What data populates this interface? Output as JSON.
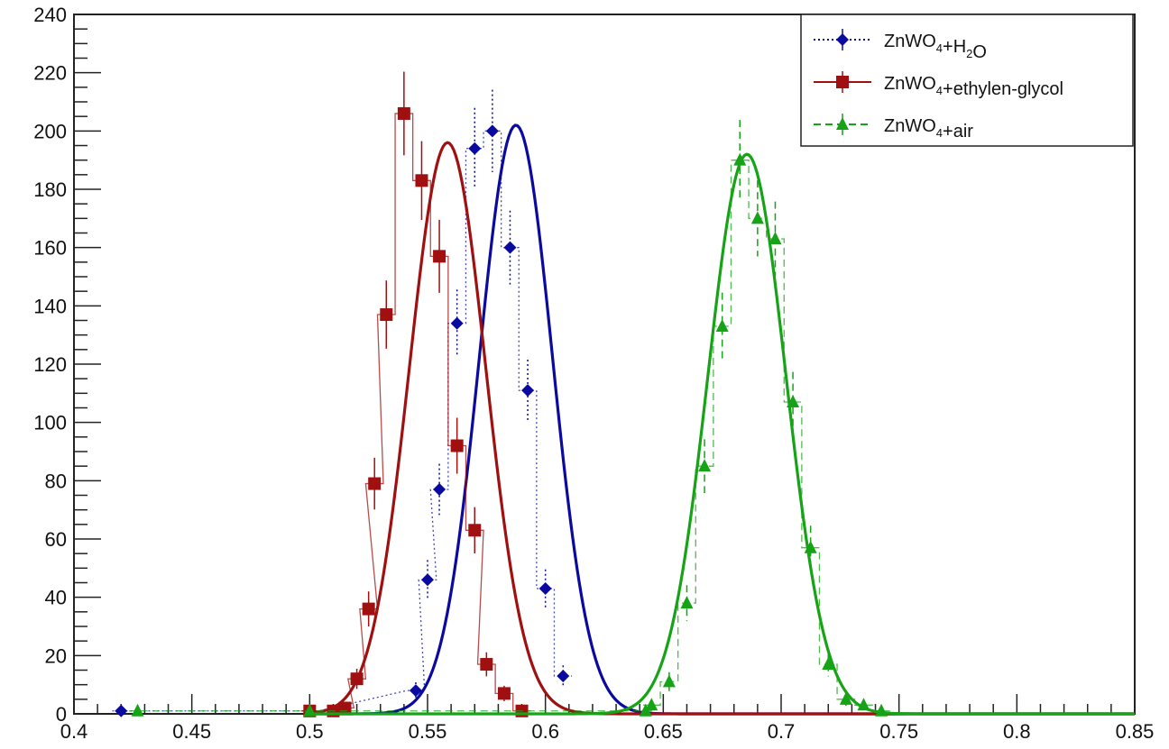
{
  "chart_data": {
    "type": "line",
    "title": "",
    "xlabel": "",
    "ylabel": "",
    "xlim": [
      0.4,
      0.85
    ],
    "ylim": [
      0,
      240
    ],
    "x_ticks": [
      0.4,
      0.45,
      0.5,
      0.55,
      0.6,
      0.65,
      0.7,
      0.75,
      0.8,
      0.85
    ],
    "x_tick_labels": [
      "0.4",
      "0.45",
      "0.5",
      "0.55",
      "0.6",
      "0.65",
      "0.7",
      "0.75",
      "0.8",
      "0.85"
    ],
    "y_ticks": [
      0,
      20,
      40,
      60,
      80,
      100,
      120,
      140,
      160,
      180,
      200,
      220,
      240
    ],
    "y_tick_labels": [
      "0",
      "20",
      "40",
      "60",
      "80",
      "100",
      "120",
      "140",
      "160",
      "180",
      "200",
      "220",
      "240"
    ],
    "grid": false,
    "legend_position": "top-right",
    "series": [
      {
        "name": "ZnWO4+H2O",
        "legend": {
          "base": "ZnWO",
          "sub1": "4",
          "mid": "+H",
          "sub2": "2",
          "tail": "O"
        },
        "color": "#0a0aa0",
        "marker": "circle",
        "line_style": "dotted",
        "points": [
          [
            0.42,
            1
          ],
          [
            0.5,
            1
          ],
          [
            0.545,
            8
          ],
          [
            0.55,
            46
          ],
          [
            0.555,
            77
          ],
          [
            0.5625,
            134
          ],
          [
            0.57,
            194
          ],
          [
            0.5775,
            200
          ],
          [
            0.585,
            160
          ],
          [
            0.5925,
            111
          ],
          [
            0.6,
            43
          ],
          [
            0.6075,
            13
          ]
        ],
        "fit": {
          "mean": 0.5875,
          "sigma": 0.0155,
          "amplitude": 202
        }
      },
      {
        "name": "ZnWO4+ethylen-glycol",
        "legend": {
          "base": "ZnWO",
          "sub1": "4",
          "mid": "+ethylen-glycol",
          "sub2": "",
          "tail": ""
        },
        "color": "#a01010",
        "marker": "square",
        "line_style": "solid",
        "points": [
          [
            0.5,
            1
          ],
          [
            0.51,
            1
          ],
          [
            0.515,
            2
          ],
          [
            0.52,
            12
          ],
          [
            0.525,
            36
          ],
          [
            0.5275,
            79
          ],
          [
            0.5325,
            137
          ],
          [
            0.54,
            206
          ],
          [
            0.5475,
            183
          ],
          [
            0.555,
            157
          ],
          [
            0.5625,
            92
          ],
          [
            0.57,
            63
          ],
          [
            0.575,
            17
          ],
          [
            0.5825,
            7
          ],
          [
            0.59,
            1
          ]
        ],
        "fit": {
          "mean": 0.5585,
          "sigma": 0.0162,
          "amplitude": 196
        }
      },
      {
        "name": "ZnWO4+air",
        "legend": {
          "base": "ZnWO",
          "sub1": "4",
          "mid": "+air",
          "sub2": "",
          "tail": ""
        },
        "color": "#16a316",
        "marker": "triangle",
        "line_style": "dashed",
        "points": [
          [
            0.427,
            1
          ],
          [
            0.5,
            1
          ],
          [
            0.6425,
            1
          ],
          [
            0.645,
            3
          ],
          [
            0.6525,
            11
          ],
          [
            0.66,
            38
          ],
          [
            0.6675,
            85
          ],
          [
            0.675,
            133
          ],
          [
            0.6825,
            190
          ],
          [
            0.69,
            170
          ],
          [
            0.6975,
            163
          ],
          [
            0.705,
            107
          ],
          [
            0.7125,
            57
          ],
          [
            0.72,
            17
          ],
          [
            0.7275,
            5
          ],
          [
            0.735,
            3
          ],
          [
            0.7425,
            1
          ]
        ],
        "fit": {
          "mean": 0.6855,
          "sigma": 0.0165,
          "amplitude": 192
        }
      }
    ]
  }
}
